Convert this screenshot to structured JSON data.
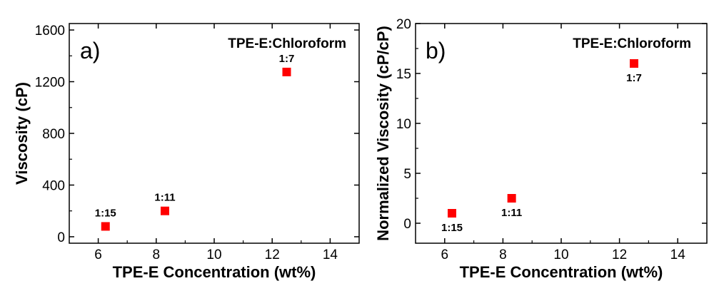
{
  "chart_data": [
    {
      "type": "scatter",
      "panel": "a)",
      "annotation": "TPE-E:Chloroform",
      "xlabel": "TPE-E Concentration (wt%)",
      "ylabel": "Viscosity (cP)",
      "xlim": [
        5,
        15
      ],
      "ylim": [
        -50,
        1650
      ],
      "xticks": [
        6,
        8,
        10,
        12,
        14
      ],
      "yticks": [
        0,
        400,
        800,
        1200,
        1600
      ],
      "marker_color": "#ff0000",
      "points": [
        {
          "x": 6.25,
          "y": 80,
          "label": "1:15",
          "label_pos": "above"
        },
        {
          "x": 8.3,
          "y": 200,
          "label": "1:11",
          "label_pos": "above"
        },
        {
          "x": 12.5,
          "y": 1275,
          "label": "1:7",
          "label_pos": "above"
        }
      ]
    },
    {
      "type": "scatter",
      "panel": "b)",
      "annotation": "TPE-E:Chloroform",
      "xlabel": "TPE-E Concentration (wt%)",
      "ylabel": "Normalized Viscosity (cP/cP)",
      "xlim": [
        5,
        15
      ],
      "ylim": [
        -2,
        20
      ],
      "xticks": [
        6,
        8,
        10,
        12,
        14
      ],
      "yticks": [
        0,
        5,
        10,
        15,
        20
      ],
      "marker_color": "#ff0000",
      "points": [
        {
          "x": 6.25,
          "y": 1.0,
          "label": "1:15",
          "label_pos": "below"
        },
        {
          "x": 8.3,
          "y": 2.5,
          "label": "1:11",
          "label_pos": "below"
        },
        {
          "x": 12.5,
          "y": 16.0,
          "label": "1:7",
          "label_pos": "below"
        }
      ]
    }
  ]
}
